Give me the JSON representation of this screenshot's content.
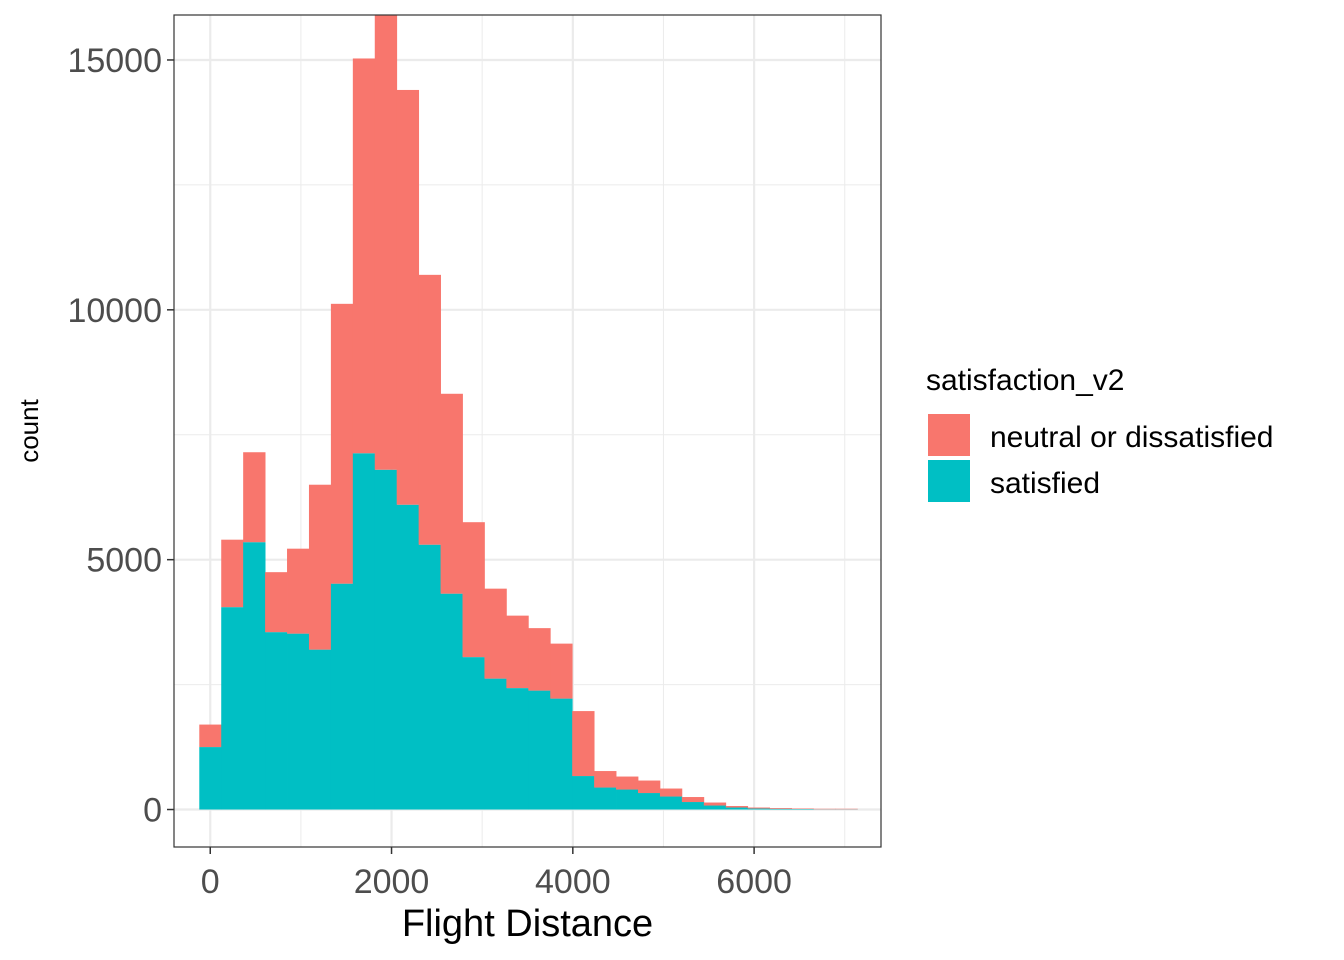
{
  "chart_data": {
    "type": "bar",
    "stacked": true,
    "bin_width": 242,
    "bin_centers": [
      0,
      242,
      484,
      726,
      968,
      1210,
      1452,
      1694,
      1936,
      2178,
      2420,
      2662,
      2904,
      3146,
      3388,
      3630,
      3872,
      4114,
      4356,
      4598,
      4840,
      5082,
      5324,
      5566,
      5808,
      6050,
      6292,
      6534,
      6776,
      7018
    ],
    "series": [
      {
        "name": "neutral or dissatisfied",
        "color": "#F8766D",
        "values": [
          450,
          1350,
          1800,
          1200,
          1700,
          3300,
          5600,
          7900,
          9100,
          8300,
          5400,
          4000,
          2700,
          1800,
          1450,
          1250,
          1100,
          1300,
          330,
          260,
          250,
          160,
          100,
          60,
          30,
          20,
          15,
          10,
          10,
          10
        ]
      },
      {
        "name": "satisfied",
        "color": "#00BFC4",
        "values": [
          1250,
          4050,
          5350,
          3550,
          3520,
          3200,
          4520,
          7130,
          6800,
          6100,
          5300,
          4320,
          3050,
          2620,
          2430,
          2380,
          2220,
          670,
          440,
          400,
          330,
          260,
          150,
          80,
          40,
          20,
          15,
          10,
          5,
          5
        ]
      }
    ],
    "xlabel": "Flight Distance",
    "ylabel": "count",
    "xlim": [
      -400,
      7400
    ],
    "ylim": [
      -750,
      15900
    ],
    "x_ticks": [
      0,
      2000,
      4000,
      6000
    ],
    "y_ticks": [
      0,
      5000,
      10000,
      15000
    ],
    "x_tick_labels": [
      "0",
      "2000",
      "4000",
      "6000"
    ],
    "y_tick_labels": [
      "0",
      "5000",
      "10000",
      "15000"
    ],
    "grid": true,
    "legend": {
      "title": "satisfaction_v2",
      "position": "right",
      "entries": [
        "neutral or dissatisfied",
        "satisfied"
      ]
    }
  }
}
